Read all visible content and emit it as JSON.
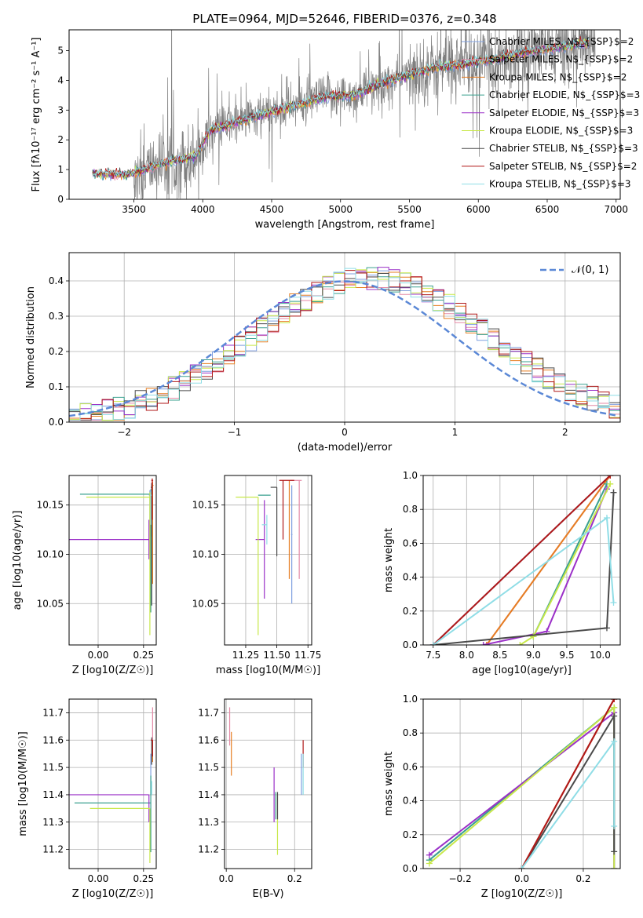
{
  "figure": {
    "title": "PLATE=0964, MJD=52646, FIBERID=0376, z=0.348"
  },
  "colors": {
    "grid": "#b0b0b0",
    "spectrum": "#7f7f7f",
    "normal_curve": "#5b88d6"
  },
  "legend_models": [
    {
      "label": "Chabrier MILES, N$_{SSP}$=2",
      "color": "#7f9fdf"
    },
    {
      "label": "Salpeter MILES, N$_{SSP}$=2",
      "color": "#e48aa6"
    },
    {
      "label": "Kroupa MILES, N$_{SSP}$=2",
      "color": "#e67e22"
    },
    {
      "label": "Chabrier ELODIE, N$_{SSP}$=3",
      "color": "#3aa08f"
    },
    {
      "label": "Salpeter ELODIE, N$_{SSP}$=3",
      "color": "#9b30c8"
    },
    {
      "label": "Kroupa ELODIE, N$_{SSP}$=3",
      "color": "#c8e84a"
    },
    {
      "label": "Chabrier STELIB, N$_{SSP}$=3",
      "color": "#4a4a4a"
    },
    {
      "label": "Salpeter STELIB, N$_{SSP}$=2",
      "color": "#b01818"
    },
    {
      "label": "Kroupa STELIB, N$_{SSP}$=3",
      "color": "#8fdde6"
    }
  ],
  "chart_data": [
    {
      "type": "line",
      "id": "spectrum",
      "xlabel": "wavelength [Angstrom, rest frame]",
      "ylabel": "Flux [f_λ10^-17 erg cm^-2 s^-1 A^-1]",
      "xlim": [
        3030,
        7030
      ],
      "ylim": [
        0,
        5.7
      ],
      "xticks": [
        3500,
        4000,
        4500,
        5000,
        5500,
        6000,
        6500,
        7000
      ],
      "yticks": [
        0,
        1,
        2,
        3,
        4,
        5
      ],
      "grid": false,
      "legend_placement": "top-right",
      "anchors": {
        "x": [
          3200,
          3300,
          3450,
          3550,
          3700,
          3850,
          3950,
          4050,
          4250,
          4500,
          4700,
          4900,
          5100,
          5300,
          5500,
          5700,
          5900,
          6100,
          6300,
          6500,
          6800
        ],
        "y": [
          0.85,
          0.85,
          0.82,
          0.95,
          1.2,
          1.35,
          1.45,
          2.3,
          2.6,
          2.95,
          3.2,
          3.45,
          3.5,
          3.9,
          4.2,
          4.45,
          4.55,
          4.7,
          4.9,
          5.05,
          5.25
        ]
      }
    },
    {
      "type": "step",
      "id": "residuals",
      "xlabel": "(data-model)/error",
      "ylabel": "Normed distribution",
      "xlim": [
        -2.5,
        2.5
      ],
      "ylim": [
        0,
        0.48
      ],
      "xticks": [
        -2,
        -1,
        0,
        1,
        2
      ],
      "yticks": [
        0.0,
        0.1,
        0.2,
        0.3,
        0.4
      ],
      "grid": true,
      "legend_placement": "top-right",
      "series": [
        {
          "name": "𝒩(0, 1)",
          "type": "gaussian",
          "mean": 0,
          "sigma": 1,
          "style": "dashed"
        }
      ]
    },
    {
      "type": "errorbar",
      "id": "age-vs-Z",
      "xlabel": "Z [log10(Z/Z☉)]",
      "ylabel": "age [log10(age/yr)]",
      "xlim": [
        -0.16,
        0.32
      ],
      "ylim": [
        10.008,
        10.18
      ],
      "xticks": [
        0.0,
        0.25
      ],
      "yticks": [
        10.05,
        10.1,
        10.15
      ],
      "grid": true,
      "points": [
        {
          "model": 0,
          "x": 0.285,
          "y": 10.16,
          "xerr": [
            0.005,
            0.005
          ],
          "yerr": [
            0.06,
            0.005
          ]
        },
        {
          "model": 1,
          "x": 0.295,
          "y": 10.168,
          "xerr": [
            0.005,
            0.005
          ],
          "yerr": [
            0.05,
            0.005
          ]
        },
        {
          "model": 2,
          "x": 0.3,
          "y": 10.17,
          "xerr": [
            0.005,
            0.005
          ],
          "yerr": [
            0.1,
            0.004
          ]
        },
        {
          "model": 3,
          "x": 0.29,
          "y": 10.161,
          "xerr": [
            0.39,
            0.005
          ],
          "yerr": [
            0.12,
            0.005
          ]
        },
        {
          "model": 4,
          "x": 0.28,
          "y": 10.115,
          "xerr": [
            0.46,
            0.0
          ],
          "yerr": [
            0.02,
            0.02
          ]
        },
        {
          "model": 5,
          "x": 0.285,
          "y": 10.158,
          "xerr": [
            0.35,
            0.005
          ],
          "yerr": [
            0.14,
            0.005
          ]
        },
        {
          "model": 6,
          "x": 0.295,
          "y": 10.168,
          "xerr": [
            0.005,
            0.005
          ],
          "yerr": [
            0.12,
            0.004
          ]
        },
        {
          "model": 7,
          "x": 0.298,
          "y": 10.175,
          "xerr": [
            0.005,
            0.005
          ],
          "yerr": [
            0.04,
            0.002
          ]
        },
        {
          "model": 8,
          "x": 0.29,
          "y": 10.16,
          "xerr": [
            0.005,
            0.005
          ],
          "yerr": [
            0.03,
            0.005
          ]
        }
      ]
    },
    {
      "type": "errorbar",
      "id": "age-vs-mass",
      "xlabel": "mass [log10(M/M☉)]",
      "ylabel": "",
      "xlim": [
        11.08,
        11.78
      ],
      "ylim": [
        10.008,
        10.18
      ],
      "xticks": [
        11.25,
        11.5,
        11.75
      ],
      "yticks": [
        10.05,
        10.1,
        10.15
      ],
      "grid": true,
      "points": [
        {
          "model": 0,
          "x": 11.62,
          "y": 10.12,
          "xerr": [
            0.005,
            0.005
          ],
          "yerr": [
            0.07,
            0.05
          ]
        },
        {
          "model": 1,
          "x": 11.68,
          "y": 10.175,
          "xerr": [
            0.07,
            0.02
          ],
          "yerr": [
            0.1,
            0.0
          ]
        },
        {
          "model": 2,
          "x": 11.6,
          "y": 10.175,
          "xerr": [
            0.0,
            0.0
          ],
          "yerr": [
            0.1,
            0.0
          ]
        },
        {
          "model": 3,
          "x": 11.4,
          "y": 10.16,
          "xerr": [
            0.05,
            0.05
          ],
          "yerr": [
            0.0,
            0.0
          ]
        },
        {
          "model": 4,
          "x": 11.4,
          "y": 10.115,
          "xerr": [
            0.07,
            0.0
          ],
          "yerr": [
            0.06,
            0.04
          ]
        },
        {
          "model": 5,
          "x": 11.35,
          "y": 10.158,
          "xerr": [
            0.18,
            0.0
          ],
          "yerr": [
            0.14,
            0.0
          ]
        },
        {
          "model": 6,
          "x": 11.5,
          "y": 10.168,
          "xerr": [
            0.05,
            0.0
          ],
          "yerr": [
            0.07,
            0.0
          ]
        },
        {
          "model": 7,
          "x": 11.55,
          "y": 10.175,
          "xerr": [
            0.03,
            0.09
          ],
          "yerr": [
            0.06,
            0.0
          ]
        },
        {
          "model": 8,
          "x": 11.42,
          "y": 10.13,
          "xerr": [
            0.04,
            0.0
          ],
          "yerr": [
            0.02,
            0.01
          ]
        }
      ]
    },
    {
      "type": "line",
      "id": "massweight-vs-age",
      "xlabel": "age [log10(age/yr)]",
      "ylabel": "mass weight",
      "xlim": [
        7.35,
        10.3
      ],
      "ylim": [
        0,
        1.0
      ],
      "xticks": [
        7.5,
        8.0,
        8.5,
        9.0,
        9.5,
        10.0
      ],
      "yticks": [
        0.0,
        0.2,
        0.4,
        0.6,
        0.8,
        1.0
      ],
      "grid": true,
      "series": [
        {
          "model": 0,
          "x": [
            7.5,
            10.15
          ],
          "y": [
            0.0,
            1.0
          ]
        },
        {
          "model": 1,
          "x": [
            8.3,
            10.15
          ],
          "y": [
            0.0,
            1.0
          ]
        },
        {
          "model": 2,
          "x": [
            8.3,
            10.15
          ],
          "y": [
            0.0,
            1.0
          ]
        },
        {
          "model": 3,
          "x": [
            9.0,
            10.1
          ],
          "y": [
            0.05,
            0.95
          ]
        },
        {
          "model": 4,
          "x": [
            8.25,
            9.2,
            10.1
          ],
          "y": [
            0.0,
            0.08,
            0.92
          ]
        },
        {
          "model": 5,
          "x": [
            8.8,
            9.0,
            10.15
          ],
          "y": [
            0.0,
            0.05,
            0.95
          ]
        },
        {
          "model": 6,
          "x": [
            7.5,
            10.1,
            10.2,
            10.2
          ],
          "y": [
            0.0,
            0.1,
            0.9,
            0.9
          ]
        },
        {
          "model": 7,
          "x": [
            7.5,
            10.15
          ],
          "y": [
            0.0,
            1.0
          ]
        },
        {
          "model": 8,
          "x": [
            7.5,
            10.1,
            10.2
          ],
          "y": [
            0.0,
            0.75,
            0.25
          ]
        }
      ]
    },
    {
      "type": "errorbar",
      "id": "mass-vs-Z",
      "xlabel": "Z [log10(Z/Z☉)]",
      "ylabel": "mass [log10(M/M☉)]",
      "xlim": [
        -0.16,
        0.32
      ],
      "ylim": [
        11.13,
        11.75
      ],
      "xticks": [
        0.0,
        0.25
      ],
      "yticks": [
        11.2,
        11.3,
        11.4,
        11.5,
        11.6,
        11.7
      ],
      "grid": true,
      "points": [
        {
          "model": 0,
          "x": 0.29,
          "y": 11.45,
          "xerr": [
            0.0,
            0.0
          ],
          "yerr": [
            0.05,
            0.1
          ]
        },
        {
          "model": 1,
          "x": 0.3,
          "y": 11.68,
          "xerr": [
            0.0,
            0.0
          ],
          "yerr": [
            0.08,
            0.04
          ]
        },
        {
          "model": 2,
          "x": 0.3,
          "y": 11.6,
          "xerr": [
            0.0,
            0.0
          ],
          "yerr": [
            0.08,
            0.0
          ]
        },
        {
          "model": 3,
          "x": 0.29,
          "y": 11.37,
          "xerr": [
            0.42,
            0.0
          ],
          "yerr": [
            0.18,
            0.1
          ]
        },
        {
          "model": 4,
          "x": 0.28,
          "y": 11.4,
          "xerr": [
            0.44,
            0.0
          ],
          "yerr": [
            0.1,
            0.0
          ]
        },
        {
          "model": 5,
          "x": 0.285,
          "y": 11.35,
          "xerr": [
            0.33,
            0.0
          ],
          "yerr": [
            0.2,
            0.0
          ]
        },
        {
          "model": 6,
          "x": 0.295,
          "y": 11.51,
          "xerr": [
            0.0,
            0.0
          ],
          "yerr": [
            0.0,
            0.1
          ]
        },
        {
          "model": 7,
          "x": 0.3,
          "y": 11.6,
          "xerr": [
            0.01,
            0.0
          ],
          "yerr": [
            0.06,
            0.0
          ]
        },
        {
          "model": 8,
          "x": 0.295,
          "y": 11.45,
          "xerr": [
            0.0,
            0.0
          ],
          "yerr": [
            0.05,
            0.0
          ]
        }
      ]
    },
    {
      "type": "errorbar",
      "id": "mass-vs-ebv",
      "xlabel": "E(B-V)",
      "ylabel": "",
      "xlim": [
        -0.005,
        0.25
      ],
      "ylim": [
        11.13,
        11.75
      ],
      "xticks": [
        0.0,
        0.2
      ],
      "yticks": [
        11.2,
        11.3,
        11.4,
        11.5,
        11.6,
        11.7
      ],
      "grid": true,
      "points": [
        {
          "model": 0,
          "x": 0.22,
          "y": 11.45,
          "xerr": [
            0.0,
            0.0
          ],
          "yerr": [
            0.05,
            0.1
          ]
        },
        {
          "model": 1,
          "x": 0.01,
          "y": 11.64,
          "xerr": [
            0.0,
            0.0
          ],
          "yerr": [
            0.06,
            0.08
          ]
        },
        {
          "model": 2,
          "x": 0.015,
          "y": 11.55,
          "xerr": [
            0.0,
            0.0
          ],
          "yerr": [
            0.08,
            0.08
          ]
        },
        {
          "model": 3,
          "x": 0.145,
          "y": 11.36,
          "xerr": [
            0.0,
            0.0
          ],
          "yerr": [
            0.05,
            0.05
          ]
        },
        {
          "model": 4,
          "x": 0.14,
          "y": 11.4,
          "xerr": [
            0.0,
            0.0
          ],
          "yerr": [
            0.1,
            0.1
          ]
        },
        {
          "model": 5,
          "x": 0.15,
          "y": 11.3,
          "xerr": [
            0.0,
            0.0
          ],
          "yerr": [
            0.12,
            0.1
          ]
        },
        {
          "model": 6,
          "x": 0.15,
          "y": 11.37,
          "xerr": [
            0.0,
            0.0
          ],
          "yerr": [
            0.06,
            0.04
          ]
        },
        {
          "model": 7,
          "x": 0.225,
          "y": 11.55,
          "xerr": [
            0.0,
            0.0
          ],
          "yerr": [
            0.05,
            0.05
          ]
        },
        {
          "model": 8,
          "x": 0.225,
          "y": 11.45,
          "xerr": [
            0.0,
            0.0
          ],
          "yerr": [
            0.05,
            0.1
          ]
        }
      ]
    },
    {
      "type": "line",
      "id": "massweight-vs-Z",
      "xlabel": "Z [log10(Z/Z☉)]",
      "ylabel": "mass weight",
      "xlim": [
        -0.32,
        0.32
      ],
      "ylim": [
        0,
        1.0
      ],
      "xticks": [
        -0.2,
        0.0,
        0.2
      ],
      "yticks": [
        0.0,
        0.2,
        0.4,
        0.6,
        0.8,
        1.0
      ],
      "grid": true,
      "series": [
        {
          "model": 0,
          "x": [
            0.0,
            0.3
          ],
          "y": [
            0.0,
            1.0
          ]
        },
        {
          "model": 1,
          "x": [
            0.0,
            0.3
          ],
          "y": [
            0.0,
            1.0
          ]
        },
        {
          "model": 2,
          "x": [
            0.0,
            0.3
          ],
          "y": [
            0.0,
            1.0
          ]
        },
        {
          "model": 3,
          "x": [
            -0.3,
            0.3,
            0.3
          ],
          "y": [
            0.05,
            0.95,
            0.0
          ]
        },
        {
          "model": 4,
          "x": [
            -0.3,
            0.3,
            0.3
          ],
          "y": [
            0.08,
            0.92,
            0.0
          ]
        },
        {
          "model": 5,
          "x": [
            -0.3,
            0.3,
            0.3
          ],
          "y": [
            0.03,
            0.95,
            0.0
          ]
        },
        {
          "model": 6,
          "x": [
            0.0,
            0.3,
            0.3
          ],
          "y": [
            0.0,
            0.9,
            0.1
          ]
        },
        {
          "model": 7,
          "x": [
            0.0,
            0.3
          ],
          "y": [
            0.0,
            1.0
          ]
        },
        {
          "model": 8,
          "x": [
            0.0,
            0.3,
            0.3
          ],
          "y": [
            0.0,
            0.75,
            0.25
          ]
        }
      ]
    }
  ]
}
